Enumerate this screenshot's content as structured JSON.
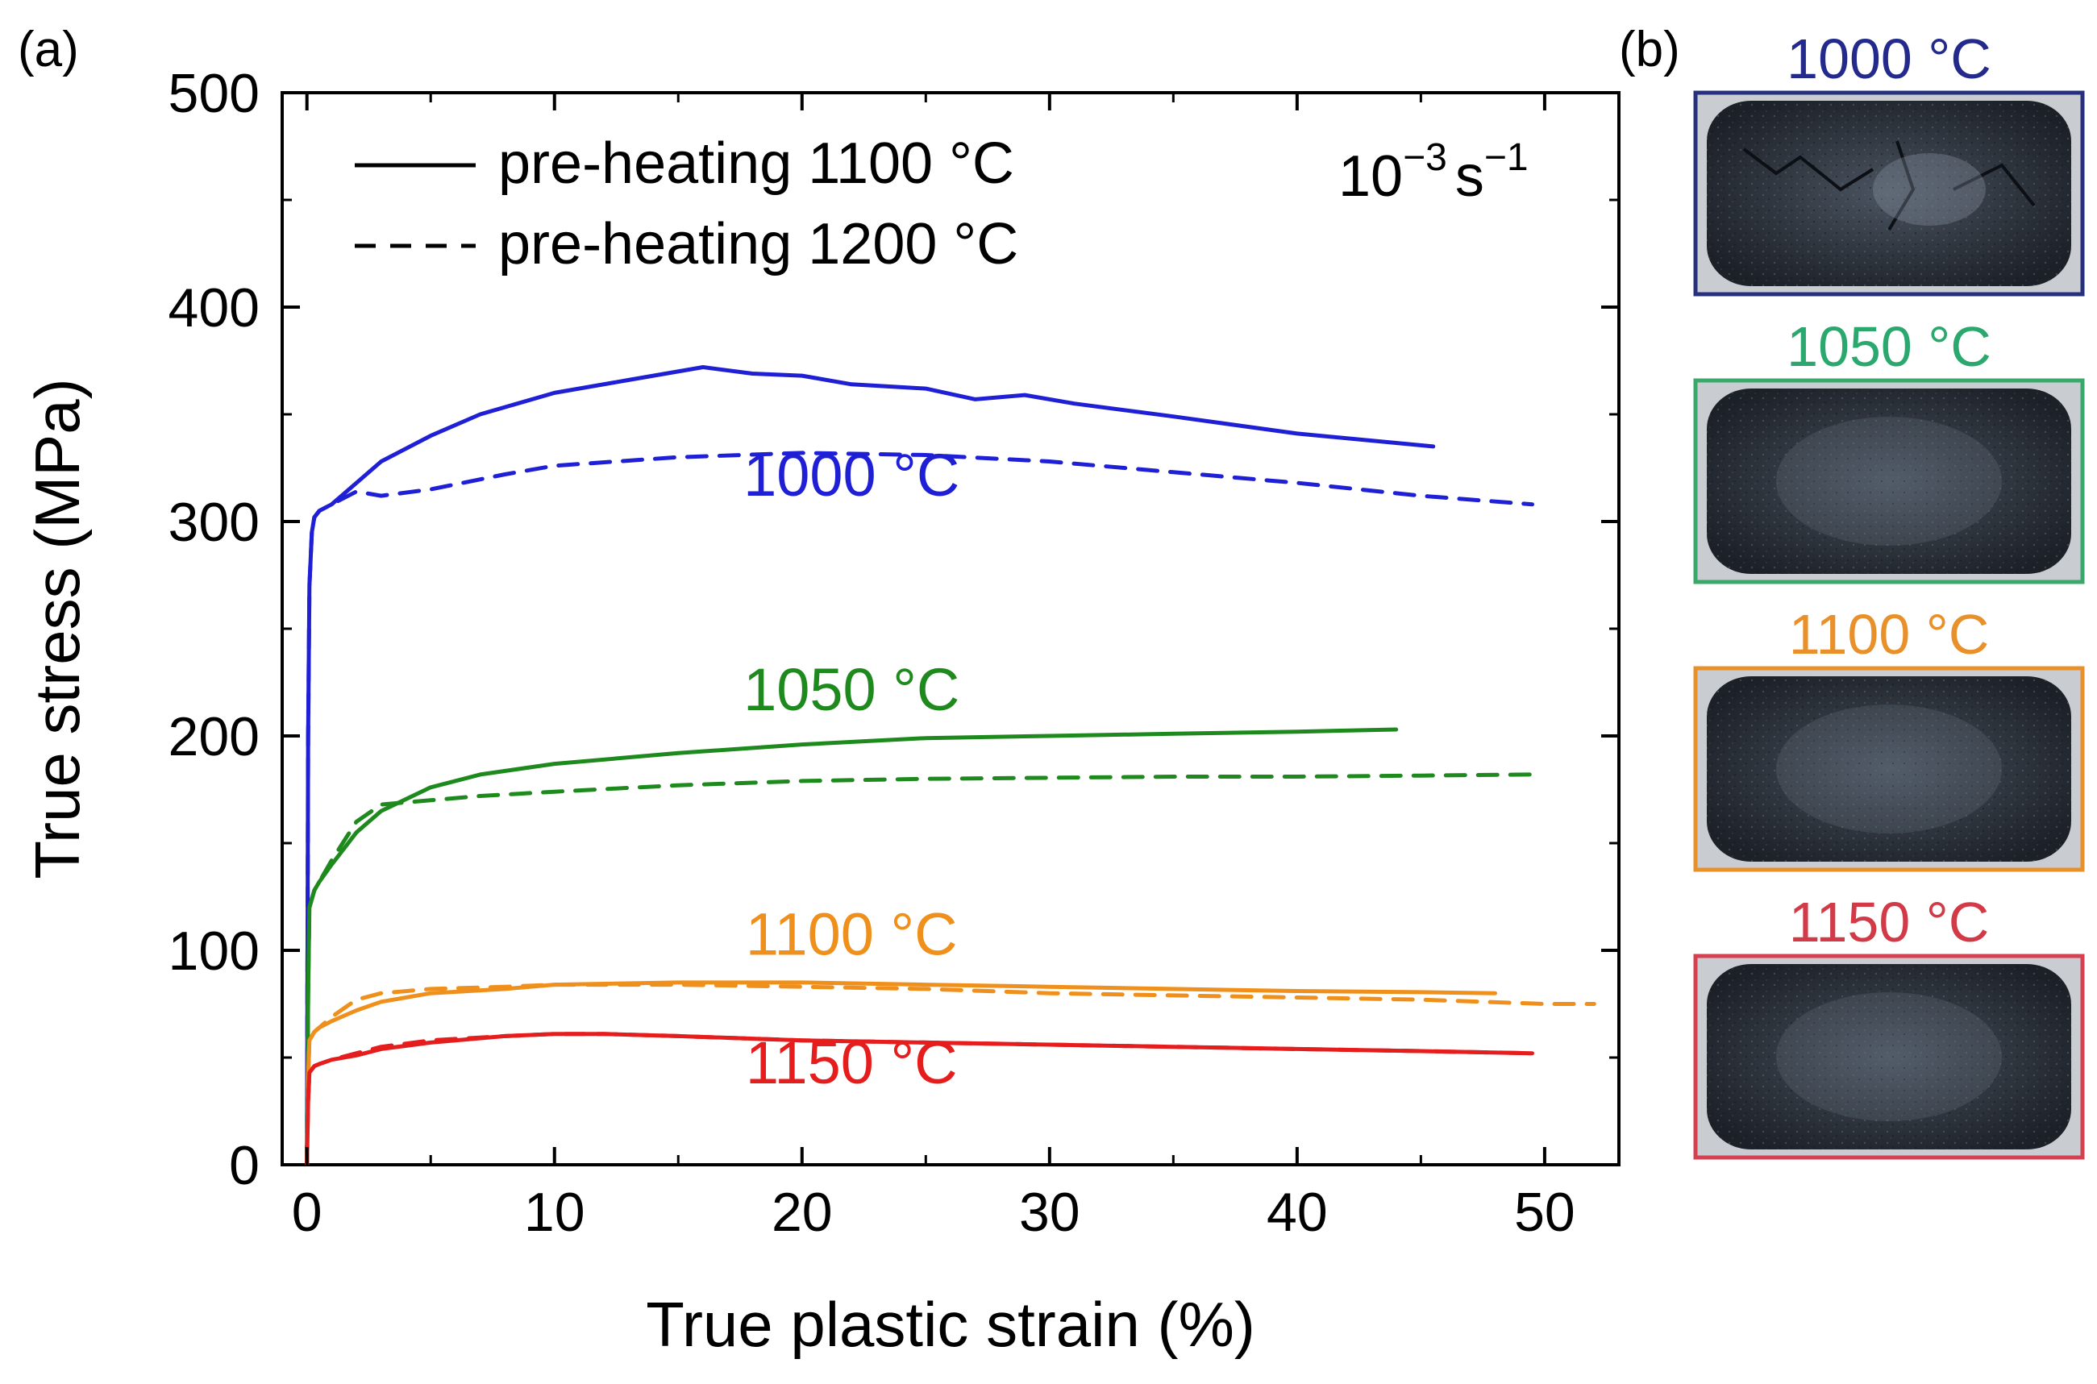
{
  "chart_data": {
    "type": "line",
    "panel_a": {
      "label": "(a)",
      "xlabel": "True plastic strain (%)",
      "ylabel": "True stress (MPa)",
      "xlim": [
        -1,
        53
      ],
      "ylim": [
        0,
        500
      ],
      "xticks": [
        0,
        10,
        20,
        30,
        40,
        50
      ],
      "yticks": [
        0,
        100,
        200,
        300,
        400,
        500
      ],
      "strain_rate": {
        "base": "10",
        "exponent": "−3",
        "unit": "s",
        "unit_exponent": "−1"
      },
      "legend": [
        {
          "label": "pre-heating 1100 °C",
          "style": "solid"
        },
        {
          "label": "pre-heating 1200 °C",
          "style": "dashed"
        }
      ],
      "annotations": [
        {
          "text": "1000 °C",
          "color": "#1f1fd6",
          "x": 22,
          "y": 312
        },
        {
          "text": "1050 °C",
          "color": "#1e8a1e",
          "x": 22,
          "y": 212
        },
        {
          "text": "1100 °C",
          "color": "#f0901c",
          "x": 22,
          "y": 98
        },
        {
          "text": "1150 °C",
          "color": "#e61d1d",
          "x": 22,
          "y": 38
        }
      ],
      "series": [
        {
          "name": "1000 °C, pre-heating 1100 °C",
          "color": "#1f1fd6",
          "style": "solid",
          "x": [
            0,
            0.05,
            0.1,
            0.2,
            0.3,
            0.5,
            1,
            2,
            3,
            5,
            7,
            10,
            13,
            16,
            18,
            20,
            22,
            25,
            27,
            29,
            31,
            35,
            40,
            45.5
          ],
          "y": [
            0,
            200,
            270,
            295,
            302,
            305,
            308,
            318,
            328,
            340,
            350,
            360,
            366,
            372,
            369,
            368,
            364,
            362,
            357,
            359,
            355,
            349,
            341,
            335
          ]
        },
        {
          "name": "1000 °C, pre-heating 1200 °C",
          "color": "#1f1fd6",
          "style": "dashed",
          "x": [
            0,
            0.05,
            0.1,
            0.2,
            0.3,
            0.5,
            1,
            2,
            3,
            5,
            8,
            10,
            15,
            20,
            25,
            30,
            35,
            40,
            45,
            49.5
          ],
          "y": [
            0,
            200,
            270,
            295,
            302,
            305,
            308,
            314,
            312,
            315,
            322,
            326,
            330,
            332,
            331,
            328,
            323,
            318,
            312,
            308
          ]
        },
        {
          "name": "1050 °C, pre-heating 1100 °C",
          "color": "#1e8a1e",
          "style": "solid",
          "x": [
            0,
            0.05,
            0.1,
            0.3,
            0.5,
            1,
            2,
            3,
            5,
            7,
            10,
            15,
            20,
            25,
            30,
            35,
            40,
            44
          ],
          "y": [
            0,
            80,
            120,
            128,
            132,
            140,
            155,
            165,
            176,
            182,
            187,
            192,
            196,
            199,
            200,
            201,
            202,
            203
          ]
        },
        {
          "name": "1050 °C, pre-heating 1200 °C",
          "color": "#1e8a1e",
          "style": "dashed",
          "x": [
            0,
            0.05,
            0.1,
            0.3,
            0.5,
            1,
            2,
            3,
            5,
            7,
            10,
            15,
            20,
            25,
            30,
            35,
            40,
            45,
            49.5
          ],
          "y": [
            0,
            80,
            120,
            128,
            132,
            142,
            160,
            168,
            170,
            172,
            174,
            177,
            179,
            180,
            180.5,
            181,
            181,
            181.5,
            182
          ]
        },
        {
          "name": "1100 °C, pre-heating 1100 °C",
          "color": "#f0901c",
          "style": "solid",
          "x": [
            0,
            0.05,
            0.1,
            0.3,
            0.5,
            1,
            2,
            3,
            5,
            8,
            10,
            15,
            20,
            25,
            30,
            35,
            40,
            45,
            48
          ],
          "y": [
            0,
            40,
            58,
            62,
            64,
            67,
            72,
            76,
            80,
            82,
            84,
            85,
            85,
            84,
            83,
            82,
            81,
            80.5,
            80
          ]
        },
        {
          "name": "1100 °C, pre-heating 1200 °C",
          "color": "#f0901c",
          "style": "dashed",
          "x": [
            0,
            0.05,
            0.1,
            0.3,
            0.5,
            1,
            2,
            3,
            5,
            8,
            10,
            15,
            20,
            25,
            30,
            35,
            40,
            45,
            50,
            52
          ],
          "y": [
            0,
            40,
            58,
            62,
            64,
            69,
            77,
            80,
            82,
            83,
            84,
            84,
            83,
            82,
            80,
            79,
            78,
            77,
            75,
            75
          ]
        },
        {
          "name": "1150 °C, pre-heating 1100 °C",
          "color": "#e61d1d",
          "style": "solid",
          "x": [
            0,
            0.05,
            0.1,
            0.3,
            0.5,
            1,
            2,
            3,
            5,
            8,
            10,
            12,
            15,
            20,
            25,
            30,
            35,
            40,
            45,
            49.5
          ],
          "y": [
            0,
            30,
            43,
            46,
            47,
            49,
            51,
            54,
            57,
            60,
            61,
            61,
            60,
            58,
            57,
            56,
            55,
            54,
            53,
            52
          ]
        },
        {
          "name": "1150 °C, pre-heating 1200 °C",
          "color": "#e61d1d",
          "style": "dashed",
          "x": [
            0,
            0.05,
            0.1,
            0.3,
            0.5,
            1,
            2,
            3,
            5,
            8,
            10,
            12,
            15,
            20,
            25,
            30,
            35,
            40,
            45,
            49.5
          ],
          "y": [
            0,
            30,
            43,
            46,
            47,
            49,
            52,
            55,
            58,
            60,
            61,
            61,
            60,
            58,
            57,
            56,
            55,
            54,
            53,
            52
          ]
        }
      ]
    },
    "panel_b": {
      "label": "(b)",
      "samples": [
        {
          "label": "1000 °C",
          "color": "#232a8c",
          "frame_color": "#26307c"
        },
        {
          "label": "1050 °C",
          "color": "#2aa86e",
          "frame_color": "#3aa86a"
        },
        {
          "label": "1100 °C",
          "color": "#e8902a",
          "frame_color": "#e8902a"
        },
        {
          "label": "1150 °C",
          "color": "#d23a48",
          "frame_color": "#d64050"
        }
      ]
    }
  }
}
